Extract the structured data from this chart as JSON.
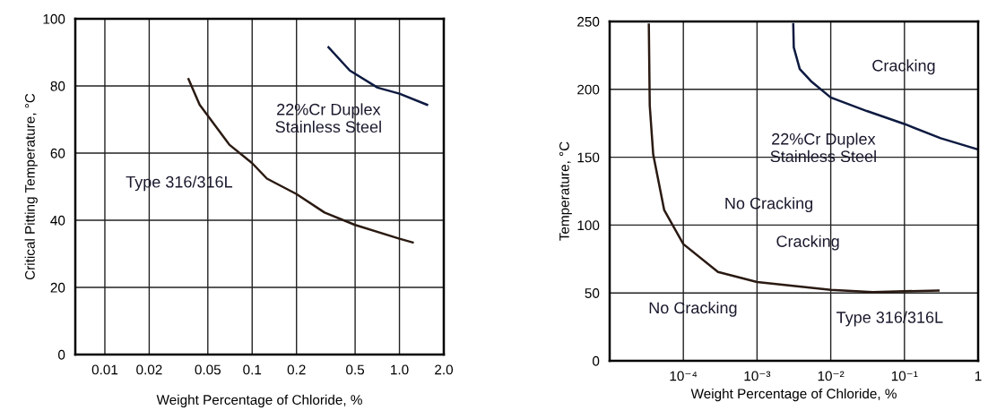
{
  "chart_data": [
    {
      "type": "line",
      "xlabel": "Weight Percentage of Chloride, %",
      "ylabel": "Critical Pitting Temperature, °C",
      "log": "x",
      "grid": true,
      "xlim": [
        0.0063,
        2.0
      ],
      "xticks": [
        0.01,
        0.02,
        0.05,
        0.1,
        0.2,
        0.5,
        {
          "value": 1.0,
          "label": "1.0"
        },
        {
          "value": 2.0,
          "label": "2.0"
        }
      ],
      "ylim": [
        0,
        100
      ],
      "yticks": [
        0,
        20,
        40,
        60,
        80,
        100
      ],
      "series": [
        {
          "color": "#2a1a12",
          "x": [
            0.037,
            0.044,
            0.07,
            0.1,
            0.126,
            0.2,
            0.31,
            0.5,
            1.0,
            1.23
          ],
          "values": [
            82,
            74.4,
            62.5,
            57,
            52.4,
            47.8,
            42.3,
            38.6,
            34.5,
            33.4
          ]
        },
        {
          "color": "#0d1a40",
          "x": [
            0.33,
            0.46,
            0.71,
            1.0,
            1.54
          ],
          "values": [
            91.5,
            84.6,
            79.5,
            77.7,
            74.4
          ]
        }
      ],
      "annotations": [
        "22%Cr Duplex\nStainless Steel",
        "Type 316/316L"
      ]
    },
    {
      "type": "line",
      "xlabel": "Weight Percentage of Chloride, %",
      "ylabel": "Temperature, °C",
      "log": "x",
      "grid": true,
      "xlim": [
        1e-05,
        1
      ],
      "xticks": [
        {
          "value": 0.0001,
          "label": "10⁻⁴"
        },
        {
          "value": 0.001,
          "label": "10⁻³"
        },
        {
          "value": 0.01,
          "label": "10⁻²"
        },
        {
          "value": 0.1,
          "label": "10⁻¹"
        },
        1
      ],
      "ylim": [
        0,
        250
      ],
      "yticks": [
        0,
        50,
        100,
        150,
        200,
        250
      ],
      "series": [
        {
          "color": "#2a1a12",
          "x": [
            3.4e-05,
            3.5e-05,
            3.9e-05,
            5.5e-05,
            0.0001,
            0.000295,
            0.001,
            0.01,
            0.037,
            0.29
          ],
          "values": [
            247.7,
            188,
            152,
            111,
            86,
            65.5,
            58,
            52.3,
            50.7,
            51.8
          ]
        },
        {
          "color": "#0d1a40",
          "x": [
            0.0031,
            0.00315,
            0.0038,
            0.0054,
            0.01,
            0.031,
            0.1,
            0.31,
            1
          ],
          "values": [
            248,
            231,
            215,
            206,
            194,
            184,
            174.5,
            164,
            155.7
          ]
        }
      ],
      "annotations": [
        "Cracking",
        "22%Cr Duplex\nStainless Steel",
        "No Cracking",
        "Cracking",
        "No Cracking",
        "Type 316/316L"
      ]
    }
  ]
}
